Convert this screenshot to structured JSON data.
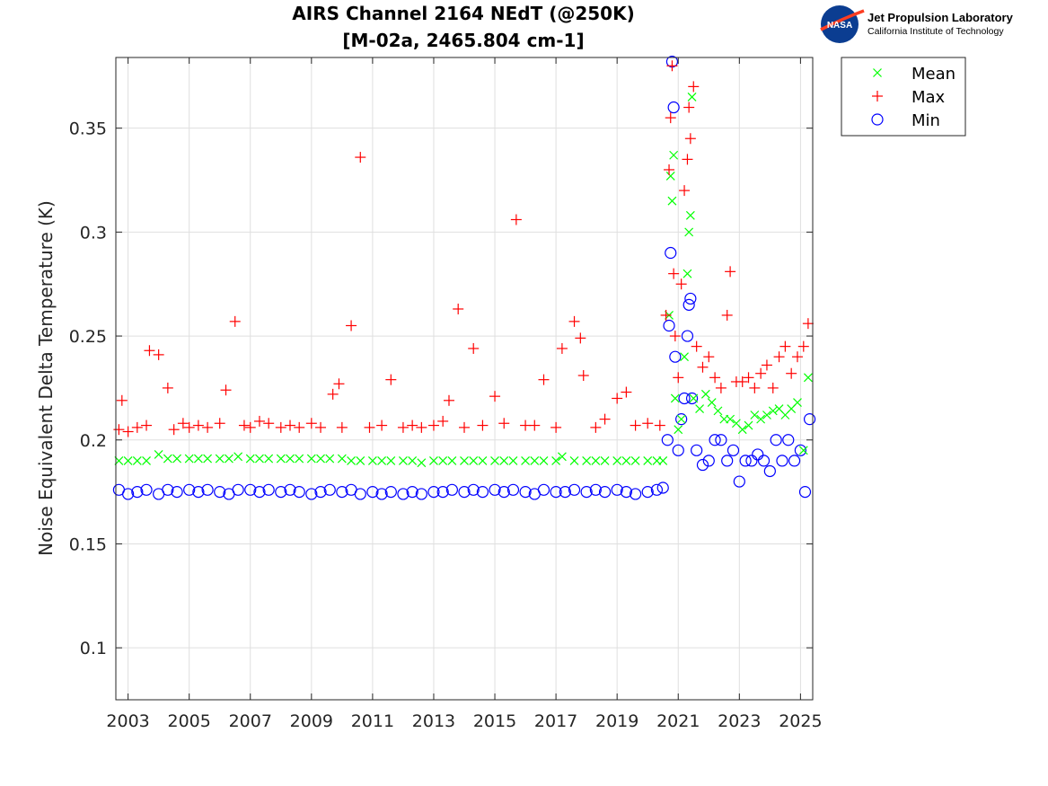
{
  "logo": {
    "nasa_text": "NASA",
    "org_name": "Jet Propulsion Laboratory",
    "org_sub": "California Institute of Technology"
  },
  "chart_data": {
    "type": "scatter",
    "title_line1": "AIRS Channel 2164 NEdT (@250K)",
    "title_line2": "[M-02a, 2465.804 cm-1]",
    "xlabel": "",
    "ylabel": "Noise Equivalent Delta Temperature (K)",
    "xlim": [
      2002.6,
      2025.4
    ],
    "ylim": [
      0.075,
      0.384
    ],
    "x_ticks": [
      2003,
      2005,
      2007,
      2009,
      2011,
      2013,
      2015,
      2017,
      2019,
      2021,
      2023,
      2025
    ],
    "x_tick_labels": [
      "2003",
      "2005",
      "2007",
      "2009",
      "2011",
      "2013",
      "2015",
      "2017",
      "2019",
      "2021",
      "2023",
      "2025"
    ],
    "y_ticks": [
      0.1,
      0.15,
      0.2,
      0.25,
      0.3,
      0.35
    ],
    "y_tick_labels": [
      "0.1",
      "0.15",
      "0.2",
      "0.25",
      "0.3",
      "0.35"
    ],
    "grid": true,
    "legend_position": "outside top-right",
    "legend": [
      "Mean",
      "Max",
      "Min"
    ],
    "series": [
      {
        "name": "Mean",
        "marker": "x",
        "color": "#00ff00",
        "points": [
          [
            2002.7,
            0.19
          ],
          [
            2003.0,
            0.19
          ],
          [
            2003.3,
            0.19
          ],
          [
            2003.6,
            0.19
          ],
          [
            2004.0,
            0.193
          ],
          [
            2004.3,
            0.191
          ],
          [
            2004.6,
            0.191
          ],
          [
            2005.0,
            0.191
          ],
          [
            2005.3,
            0.191
          ],
          [
            2005.6,
            0.191
          ],
          [
            2006.0,
            0.191
          ],
          [
            2006.3,
            0.191
          ],
          [
            2006.6,
            0.192
          ],
          [
            2007.0,
            0.191
          ],
          [
            2007.3,
            0.191
          ],
          [
            2007.6,
            0.191
          ],
          [
            2008.0,
            0.191
          ],
          [
            2008.3,
            0.191
          ],
          [
            2008.6,
            0.191
          ],
          [
            2009.0,
            0.191
          ],
          [
            2009.3,
            0.191
          ],
          [
            2009.6,
            0.191
          ],
          [
            2010.0,
            0.191
          ],
          [
            2010.3,
            0.19
          ],
          [
            2010.6,
            0.19
          ],
          [
            2011.0,
            0.19
          ],
          [
            2011.3,
            0.19
          ],
          [
            2011.6,
            0.19
          ],
          [
            2012.0,
            0.19
          ],
          [
            2012.3,
            0.19
          ],
          [
            2012.6,
            0.189
          ],
          [
            2013.0,
            0.19
          ],
          [
            2013.3,
            0.19
          ],
          [
            2013.6,
            0.19
          ],
          [
            2014.0,
            0.19
          ],
          [
            2014.3,
            0.19
          ],
          [
            2014.6,
            0.19
          ],
          [
            2015.0,
            0.19
          ],
          [
            2015.3,
            0.19
          ],
          [
            2015.6,
            0.19
          ],
          [
            2016.0,
            0.19
          ],
          [
            2016.3,
            0.19
          ],
          [
            2016.6,
            0.19
          ],
          [
            2017.0,
            0.19
          ],
          [
            2017.2,
            0.192
          ],
          [
            2017.6,
            0.19
          ],
          [
            2018.0,
            0.19
          ],
          [
            2018.3,
            0.19
          ],
          [
            2018.6,
            0.19
          ],
          [
            2019.0,
            0.19
          ],
          [
            2019.3,
            0.19
          ],
          [
            2019.6,
            0.19
          ],
          [
            2020.0,
            0.19
          ],
          [
            2020.3,
            0.19
          ],
          [
            2020.5,
            0.19
          ],
          [
            2020.7,
            0.26
          ],
          [
            2020.75,
            0.327
          ],
          [
            2020.8,
            0.315
          ],
          [
            2020.85,
            0.337
          ],
          [
            2020.9,
            0.22
          ],
          [
            2021.0,
            0.205
          ],
          [
            2021.1,
            0.21
          ],
          [
            2021.2,
            0.24
          ],
          [
            2021.3,
            0.28
          ],
          [
            2021.35,
            0.3
          ],
          [
            2021.4,
            0.308
          ],
          [
            2021.45,
            0.365
          ],
          [
            2021.5,
            0.22
          ],
          [
            2021.7,
            0.215
          ],
          [
            2021.9,
            0.222
          ],
          [
            2022.1,
            0.218
          ],
          [
            2022.3,
            0.214
          ],
          [
            2022.5,
            0.21
          ],
          [
            2022.7,
            0.21
          ],
          [
            2022.9,
            0.208
          ],
          [
            2023.1,
            0.205
          ],
          [
            2023.3,
            0.207
          ],
          [
            2023.5,
            0.212
          ],
          [
            2023.7,
            0.21
          ],
          [
            2023.9,
            0.212
          ],
          [
            2024.1,
            0.214
          ],
          [
            2024.3,
            0.215
          ],
          [
            2024.5,
            0.212
          ],
          [
            2024.7,
            0.215
          ],
          [
            2024.9,
            0.218
          ],
          [
            2025.1,
            0.195
          ],
          [
            2025.25,
            0.23
          ]
        ]
      },
      {
        "name": "Max",
        "marker": "+",
        "color": "#ff0000",
        "points": [
          [
            2002.7,
            0.205
          ],
          [
            2002.8,
            0.219
          ],
          [
            2003.0,
            0.204
          ],
          [
            2003.3,
            0.206
          ],
          [
            2003.6,
            0.207
          ],
          [
            2003.7,
            0.243
          ],
          [
            2004.0,
            0.241
          ],
          [
            2004.3,
            0.225
          ],
          [
            2004.5,
            0.205
          ],
          [
            2004.8,
            0.208
          ],
          [
            2005.0,
            0.206
          ],
          [
            2005.3,
            0.207
          ],
          [
            2005.6,
            0.206
          ],
          [
            2006.0,
            0.208
          ],
          [
            2006.2,
            0.224
          ],
          [
            2006.5,
            0.257
          ],
          [
            2006.8,
            0.207
          ],
          [
            2007.0,
            0.206
          ],
          [
            2007.3,
            0.209
          ],
          [
            2007.6,
            0.208
          ],
          [
            2008.0,
            0.206
          ],
          [
            2008.3,
            0.207
          ],
          [
            2008.6,
            0.206
          ],
          [
            2009.0,
            0.208
          ],
          [
            2009.3,
            0.206
          ],
          [
            2009.7,
            0.222
          ],
          [
            2009.9,
            0.227
          ],
          [
            2010.0,
            0.206
          ],
          [
            2010.3,
            0.255
          ],
          [
            2010.6,
            0.336
          ],
          [
            2010.9,
            0.206
          ],
          [
            2011.3,
            0.207
          ],
          [
            2011.6,
            0.229
          ],
          [
            2012.0,
            0.206
          ],
          [
            2012.3,
            0.207
          ],
          [
            2012.6,
            0.206
          ],
          [
            2013.0,
            0.207
          ],
          [
            2013.3,
            0.209
          ],
          [
            2013.5,
            0.219
          ],
          [
            2013.8,
            0.263
          ],
          [
            2014.0,
            0.206
          ],
          [
            2014.3,
            0.244
          ],
          [
            2014.6,
            0.207
          ],
          [
            2015.0,
            0.221
          ],
          [
            2015.3,
            0.208
          ],
          [
            2015.7,
            0.306
          ],
          [
            2016.0,
            0.207
          ],
          [
            2016.3,
            0.207
          ],
          [
            2016.6,
            0.229
          ],
          [
            2017.0,
            0.206
          ],
          [
            2017.2,
            0.244
          ],
          [
            2017.6,
            0.257
          ],
          [
            2017.8,
            0.249
          ],
          [
            2017.9,
            0.231
          ],
          [
            2018.3,
            0.206
          ],
          [
            2018.6,
            0.21
          ],
          [
            2019.0,
            0.22
          ],
          [
            2019.3,
            0.223
          ],
          [
            2019.6,
            0.207
          ],
          [
            2020.0,
            0.208
          ],
          [
            2020.4,
            0.207
          ],
          [
            2020.6,
            0.26
          ],
          [
            2020.7,
            0.33
          ],
          [
            2020.75,
            0.355
          ],
          [
            2020.8,
            0.38
          ],
          [
            2020.85,
            0.28
          ],
          [
            2020.9,
            0.25
          ],
          [
            2021.0,
            0.23
          ],
          [
            2021.1,
            0.275
          ],
          [
            2021.2,
            0.32
          ],
          [
            2021.3,
            0.335
          ],
          [
            2021.35,
            0.36
          ],
          [
            2021.4,
            0.345
          ],
          [
            2021.5,
            0.37
          ],
          [
            2021.6,
            0.245
          ],
          [
            2021.8,
            0.235
          ],
          [
            2022.0,
            0.24
          ],
          [
            2022.2,
            0.23
          ],
          [
            2022.4,
            0.225
          ],
          [
            2022.6,
            0.26
          ],
          [
            2022.7,
            0.281
          ],
          [
            2022.9,
            0.228
          ],
          [
            2023.1,
            0.228
          ],
          [
            2023.3,
            0.23
          ],
          [
            2023.5,
            0.225
          ],
          [
            2023.7,
            0.232
          ],
          [
            2023.9,
            0.236
          ],
          [
            2024.1,
            0.225
          ],
          [
            2024.3,
            0.24
          ],
          [
            2024.5,
            0.245
          ],
          [
            2024.7,
            0.232
          ],
          [
            2024.9,
            0.24
          ],
          [
            2025.1,
            0.245
          ],
          [
            2025.25,
            0.256
          ]
        ]
      },
      {
        "name": "Min",
        "marker": "o",
        "color": "#0000ff",
        "points": [
          [
            2002.7,
            0.176
          ],
          [
            2003.0,
            0.174
          ],
          [
            2003.3,
            0.175
          ],
          [
            2003.6,
            0.176
          ],
          [
            2004.0,
            0.174
          ],
          [
            2004.3,
            0.176
          ],
          [
            2004.6,
            0.175
          ],
          [
            2005.0,
            0.176
          ],
          [
            2005.3,
            0.175
          ],
          [
            2005.6,
            0.176
          ],
          [
            2006.0,
            0.175
          ],
          [
            2006.3,
            0.174
          ],
          [
            2006.6,
            0.176
          ],
          [
            2007.0,
            0.176
          ],
          [
            2007.3,
            0.175
          ],
          [
            2007.6,
            0.176
          ],
          [
            2008.0,
            0.175
          ],
          [
            2008.3,
            0.176
          ],
          [
            2008.6,
            0.175
          ],
          [
            2009.0,
            0.174
          ],
          [
            2009.3,
            0.175
          ],
          [
            2009.6,
            0.176
          ],
          [
            2010.0,
            0.175
          ],
          [
            2010.3,
            0.176
          ],
          [
            2010.6,
            0.174
          ],
          [
            2011.0,
            0.175
          ],
          [
            2011.3,
            0.174
          ],
          [
            2011.6,
            0.175
          ],
          [
            2012.0,
            0.174
          ],
          [
            2012.3,
            0.175
          ],
          [
            2012.6,
            0.174
          ],
          [
            2013.0,
            0.175
          ],
          [
            2013.3,
            0.175
          ],
          [
            2013.6,
            0.176
          ],
          [
            2014.0,
            0.175
          ],
          [
            2014.3,
            0.176
          ],
          [
            2014.6,
            0.175
          ],
          [
            2015.0,
            0.176
          ],
          [
            2015.3,
            0.175
          ],
          [
            2015.6,
            0.176
          ],
          [
            2016.0,
            0.175
          ],
          [
            2016.3,
            0.174
          ],
          [
            2016.6,
            0.176
          ],
          [
            2017.0,
            0.175
          ],
          [
            2017.3,
            0.175
          ],
          [
            2017.6,
            0.176
          ],
          [
            2018.0,
            0.175
          ],
          [
            2018.3,
            0.176
          ],
          [
            2018.6,
            0.175
          ],
          [
            2019.0,
            0.176
          ],
          [
            2019.3,
            0.175
          ],
          [
            2019.6,
            0.174
          ],
          [
            2020.0,
            0.175
          ],
          [
            2020.3,
            0.176
          ],
          [
            2020.5,
            0.177
          ],
          [
            2020.65,
            0.2
          ],
          [
            2020.7,
            0.255
          ],
          [
            2020.75,
            0.29
          ],
          [
            2020.8,
            0.382
          ],
          [
            2020.85,
            0.36
          ],
          [
            2020.9,
            0.24
          ],
          [
            2021.0,
            0.195
          ],
          [
            2021.1,
            0.21
          ],
          [
            2021.2,
            0.22
          ],
          [
            2021.3,
            0.25
          ],
          [
            2021.35,
            0.265
          ],
          [
            2021.4,
            0.268
          ],
          [
            2021.45,
            0.22
          ],
          [
            2021.6,
            0.195
          ],
          [
            2021.8,
            0.188
          ],
          [
            2022.0,
            0.19
          ],
          [
            2022.2,
            0.2
          ],
          [
            2022.4,
            0.2
          ],
          [
            2022.6,
            0.19
          ],
          [
            2022.8,
            0.195
          ],
          [
            2023.0,
            0.18
          ],
          [
            2023.2,
            0.19
          ],
          [
            2023.4,
            0.19
          ],
          [
            2023.6,
            0.193
          ],
          [
            2023.8,
            0.19
          ],
          [
            2024.0,
            0.185
          ],
          [
            2024.2,
            0.2
          ],
          [
            2024.4,
            0.19
          ],
          [
            2024.6,
            0.2
          ],
          [
            2024.8,
            0.19
          ],
          [
            2025.0,
            0.195
          ],
          [
            2025.15,
            0.175
          ],
          [
            2025.3,
            0.21
          ]
        ]
      }
    ]
  }
}
